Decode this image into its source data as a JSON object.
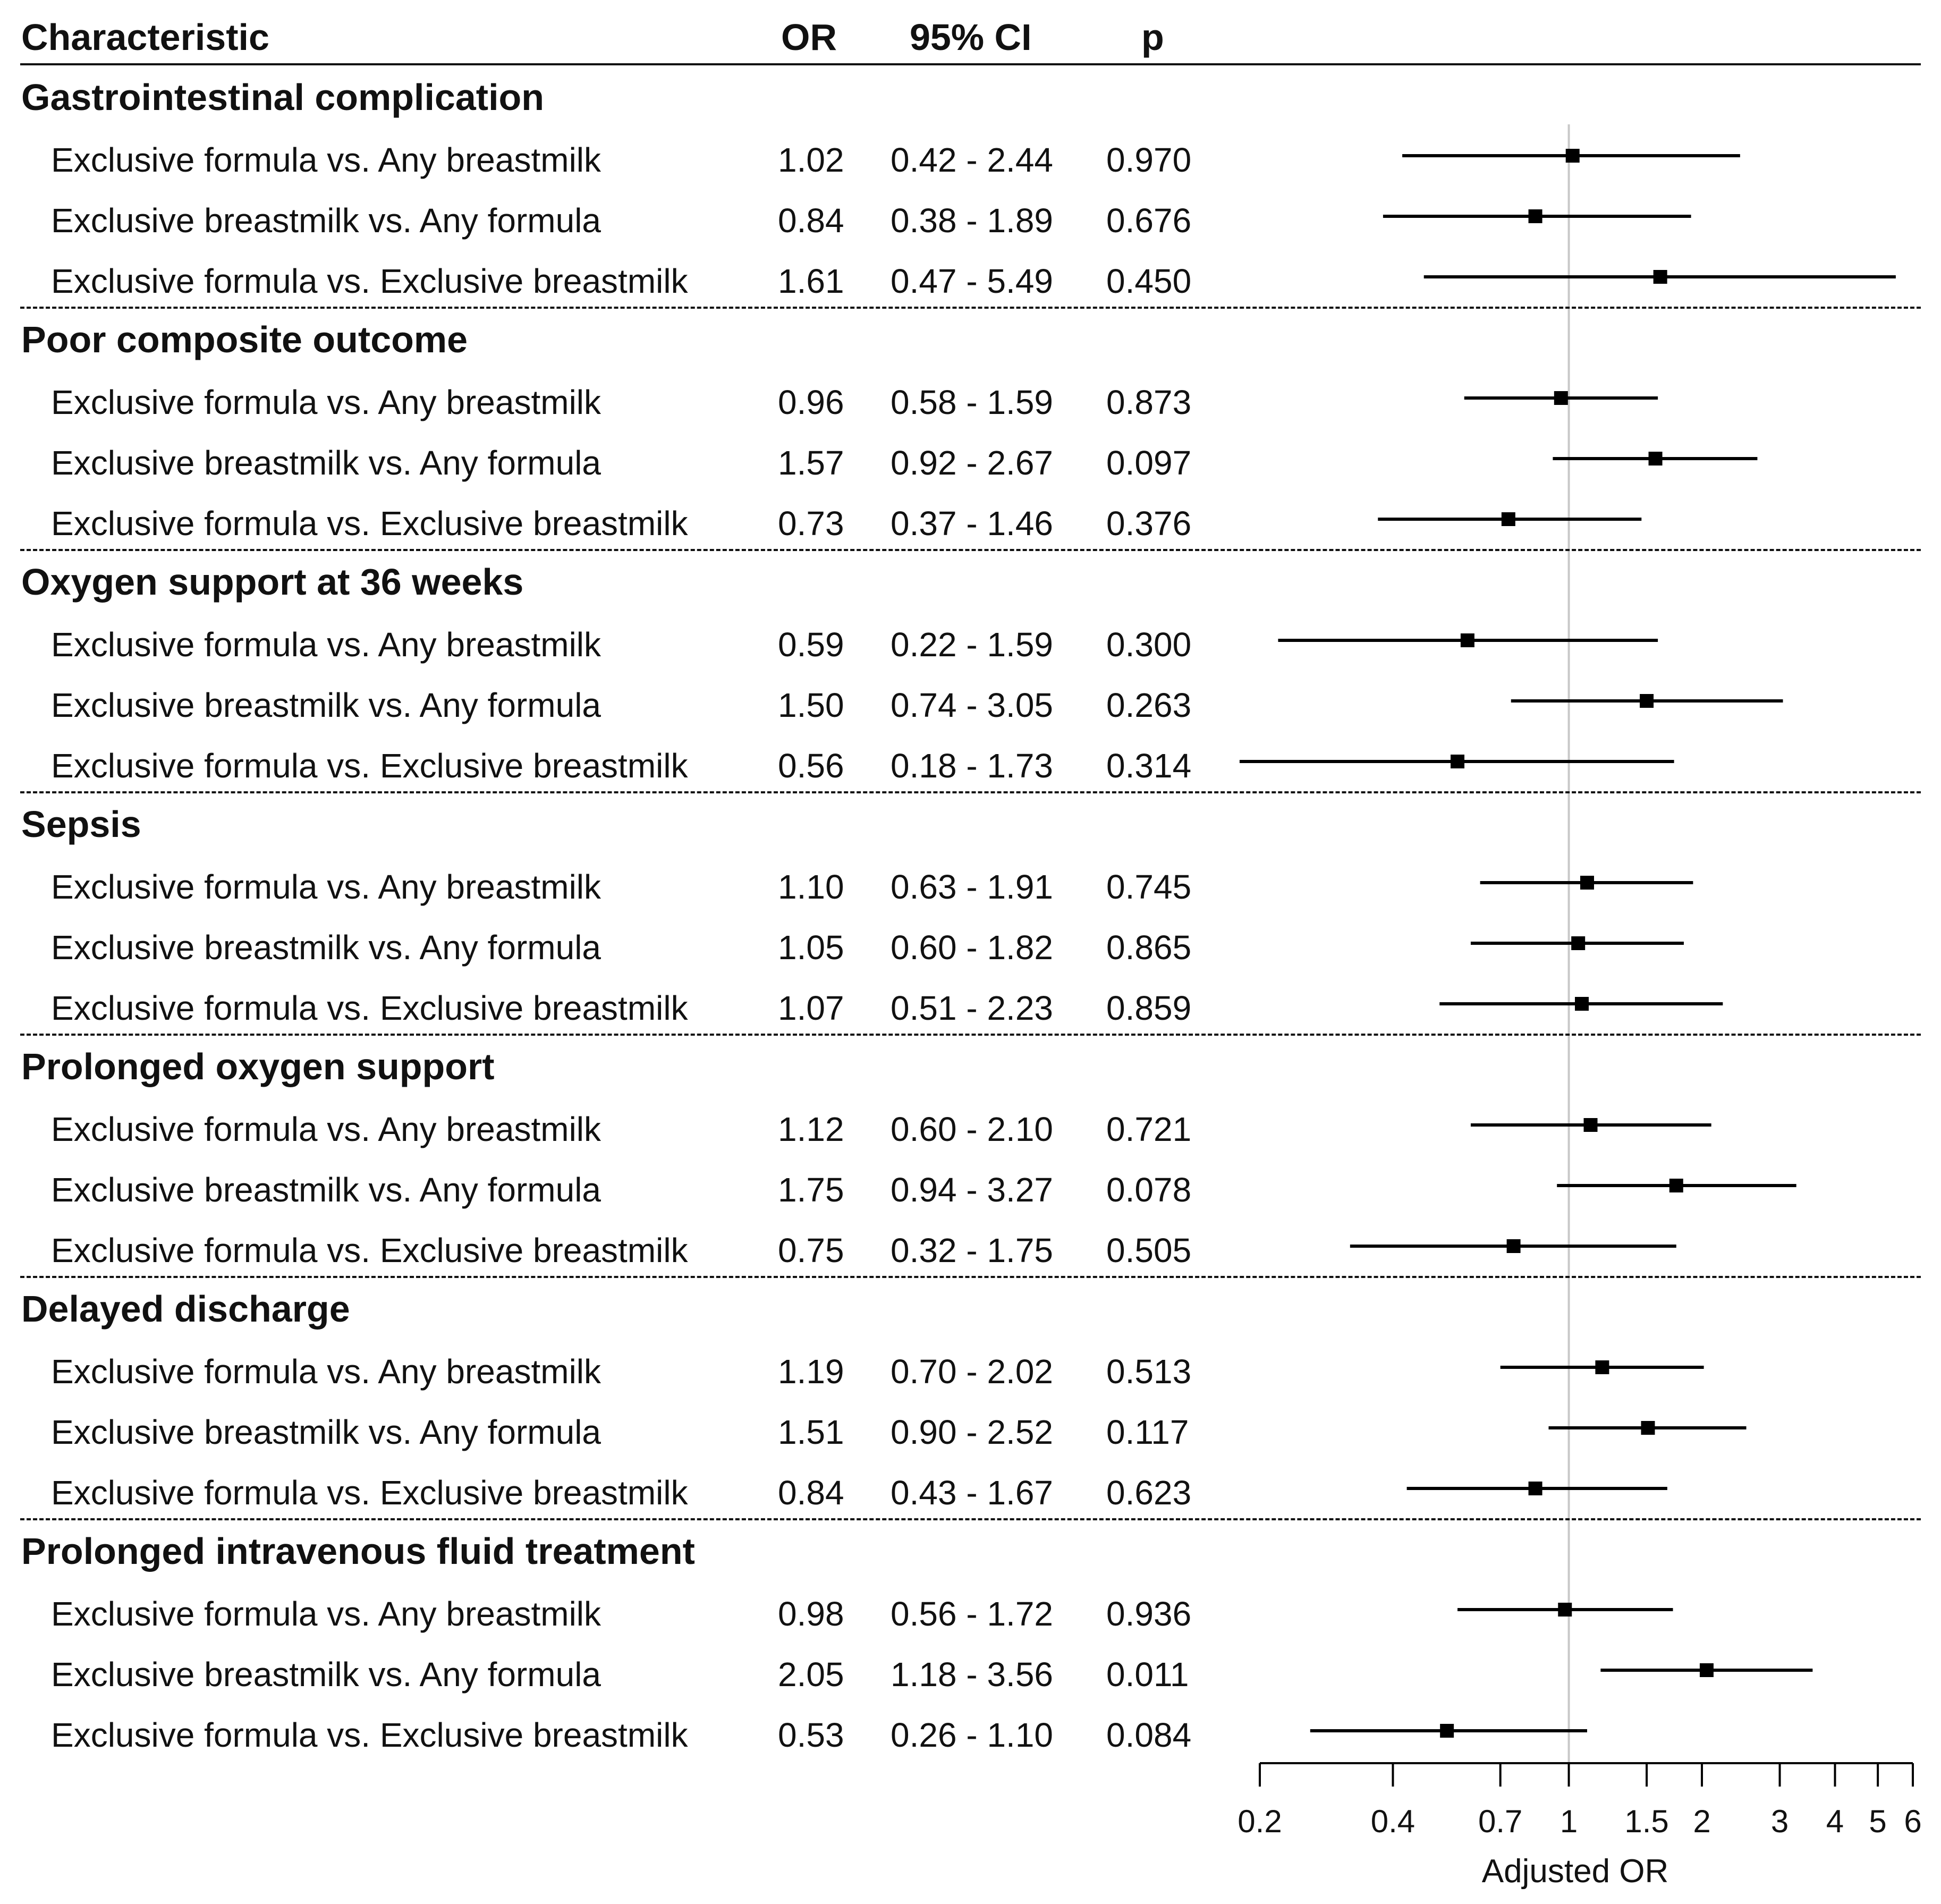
{
  "header": {
    "characteristic": "Characteristic",
    "or": "OR",
    "ci": "95% CI",
    "p": "p"
  },
  "groups": [
    {
      "title": "Gastrointestinal complication",
      "rows": [
        {
          "label": "Exclusive formula vs. Any breastmilk",
          "or": "1.02",
          "ci": "0.42 - 2.44",
          "p": "0.970"
        },
        {
          "label": "Exclusive breastmilk vs. Any formula",
          "or": "0.84",
          "ci": "0.38 - 1.89",
          "p": "0.676"
        },
        {
          "label": "Exclusive formula vs. Exclusive breastmilk",
          "or": "1.61",
          "ci": "0.47 - 5.49",
          "p": "0.450"
        }
      ]
    },
    {
      "title": "Poor composite outcome",
      "rows": [
        {
          "label": "Exclusive formula vs. Any breastmilk",
          "or": "0.96",
          "ci": "0.58 - 1.59",
          "p": "0.873"
        },
        {
          "label": "Exclusive breastmilk vs. Any formula",
          "or": "1.57",
          "ci": "0.92 - 2.67",
          "p": "0.097"
        },
        {
          "label": "Exclusive formula vs. Exclusive breastmilk",
          "or": "0.73",
          "ci": "0.37 - 1.46",
          "p": "0.376"
        }
      ]
    },
    {
      "title": "Oxygen support at 36 weeks",
      "rows": [
        {
          "label": "Exclusive formula vs. Any breastmilk",
          "or": "0.59",
          "ci": "0.22 - 1.59",
          "p": "0.300"
        },
        {
          "label": "Exclusive breastmilk vs. Any formula",
          "or": "1.50",
          "ci": "0.74 - 3.05",
          "p": "0.263"
        },
        {
          "label": "Exclusive formula vs. Exclusive breastmilk",
          "or": "0.56",
          "ci": "0.18 - 1.73",
          "p": "0.314"
        }
      ]
    },
    {
      "title": "Sepsis",
      "rows": [
        {
          "label": "Exclusive formula vs. Any breastmilk",
          "or": "1.10",
          "ci": "0.63 - 1.91",
          "p": "0.745"
        },
        {
          "label": "Exclusive breastmilk vs. Any formula",
          "or": "1.05",
          "ci": "0.60 - 1.82",
          "p": "0.865"
        },
        {
          "label": "Exclusive formula vs. Exclusive breastmilk",
          "or": "1.07",
          "ci": "0.51 - 2.23",
          "p": "0.859"
        }
      ]
    },
    {
      "title": "Prolonged oxygen support",
      "rows": [
        {
          "label": "Exclusive formula vs. Any breastmilk",
          "or": "1.12",
          "ci": "0.60 - 2.10",
          "p": "0.721"
        },
        {
          "label": "Exclusive breastmilk vs. Any formula",
          "or": "1.75",
          "ci": "0.94 - 3.27",
          "p": "0.078"
        },
        {
          "label": "Exclusive formula vs. Exclusive breastmilk",
          "or": "0.75",
          "ci": "0.32 - 1.75",
          "p": "0.505"
        }
      ]
    },
    {
      "title": "Delayed discharge",
      "rows": [
        {
          "label": "Exclusive formula vs. Any breastmilk",
          "or": "1.19",
          "ci": "0.70 - 2.02",
          "p": "0.513"
        },
        {
          "label": "Exclusive breastmilk vs. Any formula",
          "or": "1.51",
          "ci": "0.90 - 2.52",
          "p": "0.117"
        },
        {
          "label": "Exclusive formula vs. Exclusive breastmilk",
          "or": "0.84",
          "ci": "0.43 - 1.67",
          "p": "0.623"
        }
      ]
    },
    {
      "title": "Prolonged intravenous fluid treatment",
      "rows": [
        {
          "label": "Exclusive formula vs. Any breastmilk",
          "or": "0.98",
          "ci": "0.56 - 1.72",
          "p": "0.936"
        },
        {
          "label": "Exclusive breastmilk vs. Any formula",
          "or": "2.05",
          "ci": "1.18 - 3.56",
          "p": "0.011"
        },
        {
          "label": "Exclusive formula vs. Exclusive breastmilk",
          "or": "0.53",
          "ci": "0.26 - 1.10",
          "p": "0.084"
        }
      ]
    }
  ],
  "chart_data": {
    "type": "forest",
    "xlabel": "Adjusted OR",
    "xscale": "log",
    "xlim": [
      0.2,
      6
    ],
    "reference_line": 1,
    "ticks": [
      0.2,
      0.4,
      0.7,
      1,
      1.5,
      2,
      3,
      4,
      5,
      6
    ],
    "tick_labels": [
      "0.2",
      "0.4",
      "0.7",
      "1",
      "1.5",
      "2",
      "3",
      "4",
      "5",
      "6"
    ],
    "points": [
      {
        "or": 1.02,
        "lo": 0.42,
        "hi": 2.44
      },
      {
        "or": 0.84,
        "lo": 0.38,
        "hi": 1.89
      },
      {
        "or": 1.61,
        "lo": 0.47,
        "hi": 5.49
      },
      {
        "or": 0.96,
        "lo": 0.58,
        "hi": 1.59
      },
      {
        "or": 1.57,
        "lo": 0.92,
        "hi": 2.67
      },
      {
        "or": 0.73,
        "lo": 0.37,
        "hi": 1.46
      },
      {
        "or": 0.59,
        "lo": 0.22,
        "hi": 1.59
      },
      {
        "or": 1.5,
        "lo": 0.74,
        "hi": 3.05
      },
      {
        "or": 0.56,
        "lo": 0.18,
        "hi": 1.73
      },
      {
        "or": 1.1,
        "lo": 0.63,
        "hi": 1.91
      },
      {
        "or": 1.05,
        "lo": 0.6,
        "hi": 1.82
      },
      {
        "or": 1.07,
        "lo": 0.51,
        "hi": 2.23
      },
      {
        "or": 1.12,
        "lo": 0.6,
        "hi": 2.1
      },
      {
        "or": 1.75,
        "lo": 0.94,
        "hi": 3.27
      },
      {
        "or": 0.75,
        "lo": 0.32,
        "hi": 1.75
      },
      {
        "or": 1.19,
        "lo": 0.7,
        "hi": 2.02
      },
      {
        "or": 1.51,
        "lo": 0.9,
        "hi": 2.52
      },
      {
        "or": 0.84,
        "lo": 0.43,
        "hi": 1.67
      },
      {
        "or": 0.98,
        "lo": 0.56,
        "hi": 1.72
      },
      {
        "or": 2.05,
        "lo": 1.18,
        "hi": 3.56
      },
      {
        "or": 0.53,
        "lo": 0.26,
        "hi": 1.1
      }
    ]
  }
}
